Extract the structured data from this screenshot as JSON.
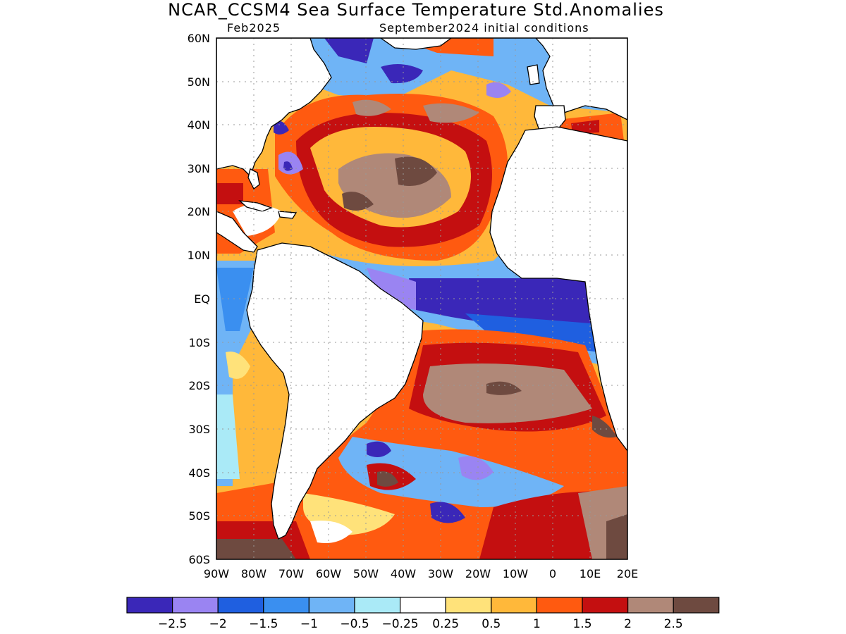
{
  "title": "NCAR_CCSM4 Sea Surface Temperature Std.Anomalies",
  "subtitle_left": "Feb2025",
  "subtitle_right": "September2024 initial conditions",
  "lat_ticks": [
    "60N",
    "50N",
    "40N",
    "30N",
    "20N",
    "10N",
    "EQ",
    "10S",
    "20S",
    "30S",
    "40S",
    "50S",
    "60S"
  ],
  "lon_ticks": [
    "90W",
    "80W",
    "70W",
    "60W",
    "50W",
    "40W",
    "30W",
    "20W",
    "10W",
    "0",
    "10E",
    "20E"
  ],
  "colorbar": {
    "colors": [
      "#3a27b8",
      "#9a84f2",
      "#1f5fe0",
      "#3a8ff0",
      "#6fb4f6",
      "#aaeaf7",
      "#ffffff",
      "#ffe27a",
      "#ffb83a",
      "#ff5a10",
      "#c40f10",
      "#b08878",
      "#6e4a40"
    ],
    "labels": [
      "−2.5",
      "−2",
      "−1.5",
      "−1",
      "−0.5",
      "−0.25",
      "0.25",
      "0.5",
      "1",
      "1.5",
      "2",
      "2.5"
    ]
  },
  "colors": {
    "land": "#ffffff",
    "coast": "#000000",
    "grid": "#999999"
  }
}
